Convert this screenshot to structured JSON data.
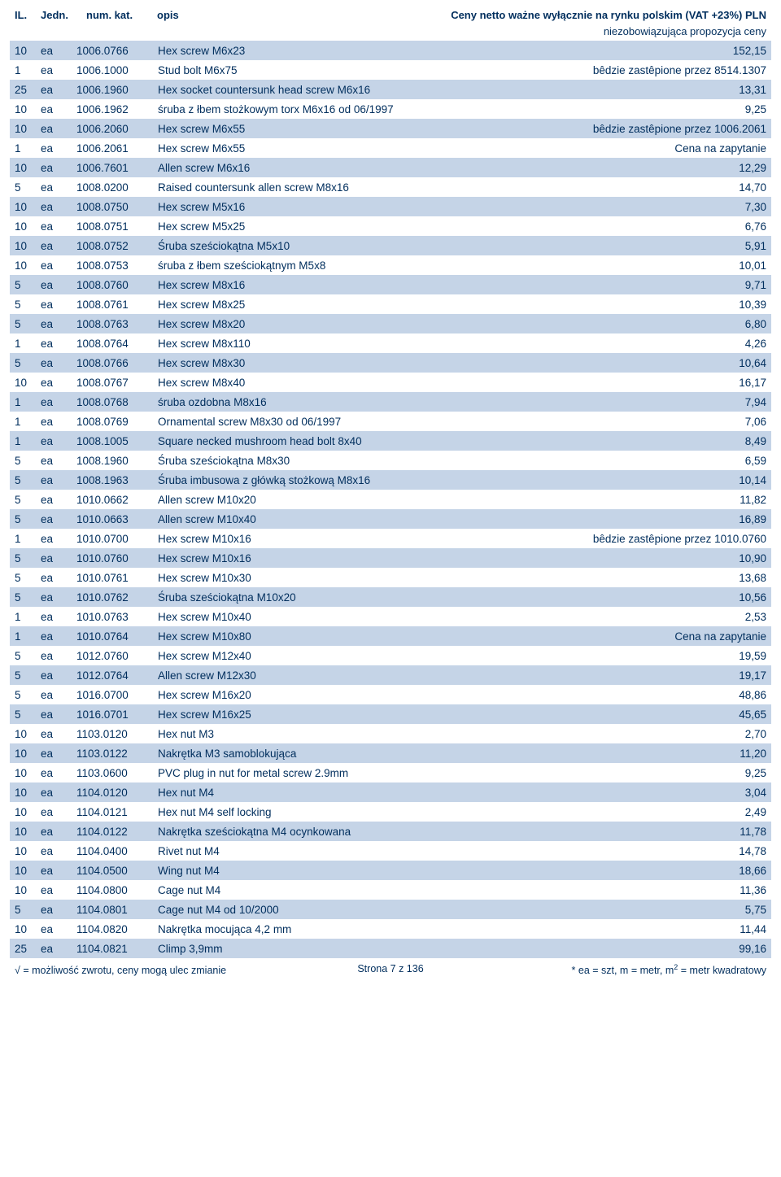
{
  "header": {
    "il": "IL.",
    "jedn": "Jedn.",
    "num": "num. kat.",
    "opis": "opis",
    "right": "Ceny netto ważne wyłącznie na rynku polskim (VAT +23%) PLN",
    "sub": "niezobowiązująca propozycja ceny"
  },
  "colors": {
    "text": "#002e5d",
    "altRow": "#c5d4e7",
    "page": "#ffffff"
  },
  "rows": [
    {
      "il": "10",
      "jedn": "ea",
      "num": "1006.0766",
      "opis": "Hex screw M6x23",
      "price": "152,15",
      "alt": true
    },
    {
      "il": "1",
      "jedn": "ea",
      "num": "1006.1000",
      "opis": "Stud bolt M6x75",
      "price": "bêdzie zastêpione przez 8514.1307",
      "alt": false
    },
    {
      "il": "25",
      "jedn": "ea",
      "num": "1006.1960",
      "opis": "Hex socket countersunk head screw M6x16",
      "price": "13,31",
      "alt": true
    },
    {
      "il": "10",
      "jedn": "ea",
      "num": "1006.1962",
      "opis": "śruba z łbem stożkowym torx M6x16 od 06/1997",
      "price": "9,25",
      "alt": false
    },
    {
      "il": "10",
      "jedn": "ea",
      "num": "1006.2060",
      "opis": "Hex screw M6x55",
      "price": "bêdzie zastêpione przez 1006.2061",
      "alt": true
    },
    {
      "il": "1",
      "jedn": "ea",
      "num": "1006.2061",
      "opis": "Hex screw M6x55",
      "price": "Cena na zapytanie",
      "alt": false
    },
    {
      "il": "10",
      "jedn": "ea",
      "num": "1006.7601",
      "opis": "Allen screw M6x16",
      "price": "12,29",
      "alt": true
    },
    {
      "il": "5",
      "jedn": "ea",
      "num": "1008.0200",
      "opis": "Raised countersunk allen screw M8x16",
      "price": "14,70",
      "alt": false
    },
    {
      "il": "10",
      "jedn": "ea",
      "num": "1008.0750",
      "opis": "Hex screw M5x16",
      "price": "7,30",
      "alt": true
    },
    {
      "il": "10",
      "jedn": "ea",
      "num": "1008.0751",
      "opis": "Hex screw M5x25",
      "price": "6,76",
      "alt": false
    },
    {
      "il": "10",
      "jedn": "ea",
      "num": "1008.0752",
      "opis": "Śruba sześciokątna M5x10",
      "price": "5,91",
      "alt": true
    },
    {
      "il": "10",
      "jedn": "ea",
      "num": "1008.0753",
      "opis": "śruba z łbem sześciokątnym M5x8",
      "price": "10,01",
      "alt": false
    },
    {
      "il": "5",
      "jedn": "ea",
      "num": "1008.0760",
      "opis": "Hex screw M8x16",
      "price": "9,71",
      "alt": true
    },
    {
      "il": "5",
      "jedn": "ea",
      "num": "1008.0761",
      "opis": "Hex screw M8x25",
      "price": "10,39",
      "alt": false
    },
    {
      "il": "5",
      "jedn": "ea",
      "num": "1008.0763",
      "opis": "Hex screw M8x20",
      "price": "6,80",
      "alt": true
    },
    {
      "il": "1",
      "jedn": "ea",
      "num": "1008.0764",
      "opis": "Hex screw M8x110",
      "price": "4,26",
      "alt": false
    },
    {
      "il": "5",
      "jedn": "ea",
      "num": "1008.0766",
      "opis": "Hex screw M8x30",
      "price": "10,64",
      "alt": true
    },
    {
      "il": "10",
      "jedn": "ea",
      "num": "1008.0767",
      "opis": "Hex screw M8x40",
      "price": "16,17",
      "alt": false
    },
    {
      "il": "1",
      "jedn": "ea",
      "num": "1008.0768",
      "opis": "śruba ozdobna M8x16",
      "price": "7,94",
      "alt": true
    },
    {
      "il": "1",
      "jedn": "ea",
      "num": "1008.0769",
      "opis": "Ornamental screw M8x30 od 06/1997",
      "price": "7,06",
      "alt": false
    },
    {
      "il": "1",
      "jedn": "ea",
      "num": "1008.1005",
      "opis": "Square necked mushroom head bolt 8x40",
      "price": "8,49",
      "alt": true
    },
    {
      "il": "5",
      "jedn": "ea",
      "num": "1008.1960",
      "opis": "Śruba sześciokątna M8x30",
      "price": "6,59",
      "alt": false
    },
    {
      "il": "5",
      "jedn": "ea",
      "num": "1008.1963",
      "opis": "Śruba imbusowa z główką stożkową M8x16",
      "price": "10,14",
      "alt": true
    },
    {
      "il": "5",
      "jedn": "ea",
      "num": "1010.0662",
      "opis": "Allen screw M10x20",
      "price": "11,82",
      "alt": false
    },
    {
      "il": "5",
      "jedn": "ea",
      "num": "1010.0663",
      "opis": "Allen screw M10x40",
      "price": "16,89",
      "alt": true
    },
    {
      "il": "1",
      "jedn": "ea",
      "num": "1010.0700",
      "opis": "Hex screw M10x16",
      "price": "bêdzie zastêpione przez 1010.0760",
      "alt": false
    },
    {
      "il": "5",
      "jedn": "ea",
      "num": "1010.0760",
      "opis": "Hex screw M10x16",
      "price": "10,90",
      "alt": true
    },
    {
      "il": "5",
      "jedn": "ea",
      "num": "1010.0761",
      "opis": "Hex screw M10x30",
      "price": "13,68",
      "alt": false
    },
    {
      "il": "5",
      "jedn": "ea",
      "num": "1010.0762",
      "opis": "Śruba sześciokątna M10x20",
      "price": "10,56",
      "alt": true
    },
    {
      "il": "1",
      "jedn": "ea",
      "num": "1010.0763",
      "opis": "Hex screw M10x40",
      "price": "2,53",
      "alt": false
    },
    {
      "il": "1",
      "jedn": "ea",
      "num": "1010.0764",
      "opis": "Hex screw M10x80",
      "price": "Cena na zapytanie",
      "alt": true
    },
    {
      "il": "5",
      "jedn": "ea",
      "num": "1012.0760",
      "opis": "Hex screw M12x40",
      "price": "19,59",
      "alt": false
    },
    {
      "il": "5",
      "jedn": "ea",
      "num": "1012.0764",
      "opis": "Allen screw M12x30",
      "price": "19,17",
      "alt": true
    },
    {
      "il": "5",
      "jedn": "ea",
      "num": "1016.0700",
      "opis": "Hex screw  M16x20",
      "price": "48,86",
      "alt": false
    },
    {
      "il": "5",
      "jedn": "ea",
      "num": "1016.0701",
      "opis": "Hex screw M16x25",
      "price": "45,65",
      "alt": true
    },
    {
      "il": "10",
      "jedn": "ea",
      "num": "1103.0120",
      "opis": "Hex nut M3",
      "price": "2,70",
      "alt": false
    },
    {
      "il": "10",
      "jedn": "ea",
      "num": "1103.0122",
      "opis": "Nakrętka M3 samoblokująca",
      "price": "11,20",
      "alt": true
    },
    {
      "il": "10",
      "jedn": "ea",
      "num": "1103.0600",
      "opis": "PVC plug in nut for metal screw 2.9mm",
      "price": "9,25",
      "alt": false
    },
    {
      "il": "10",
      "jedn": "ea",
      "num": "1104.0120",
      "opis": "Hex nut M4",
      "price": "3,04",
      "alt": true
    },
    {
      "il": "10",
      "jedn": "ea",
      "num": "1104.0121",
      "opis": "Hex nut M4 self locking",
      "price": "2,49",
      "alt": false
    },
    {
      "il": "10",
      "jedn": "ea",
      "num": "1104.0122",
      "opis": "Nakrętka sześciokątna M4 ocynkowana",
      "price": "11,78",
      "alt": true
    },
    {
      "il": "10",
      "jedn": "ea",
      "num": "1104.0400",
      "opis": "Rivet nut M4",
      "price": "14,78",
      "alt": false
    },
    {
      "il": "10",
      "jedn": "ea",
      "num": "1104.0500",
      "opis": "Wing nut M4",
      "price": "18,66",
      "alt": true
    },
    {
      "il": "10",
      "jedn": "ea",
      "num": "1104.0800",
      "opis": "Cage nut M4",
      "price": "11,36",
      "alt": false
    },
    {
      "il": "5",
      "jedn": "ea",
      "num": "1104.0801",
      "opis": "Cage nut M4 od 10/2000",
      "price": "5,75",
      "alt": true
    },
    {
      "il": "10",
      "jedn": "ea",
      "num": "1104.0820",
      "opis": "Nakrętka mocująca 4,2 mm",
      "price": "11,44",
      "alt": false
    },
    {
      "il": "25",
      "jedn": "ea",
      "num": "1104.0821",
      "opis": "Climp 3,9mm",
      "price": "99,16",
      "alt": true
    }
  ],
  "footer": {
    "left": "√ = możliwość zwrotu, ceny mogą ulec zmianie",
    "center": "Strona 7 z 136",
    "right_prefix": "* ea = szt, m = metr, m",
    "right_sup": "2",
    "right_suffix": " = metr kwadratowy"
  }
}
